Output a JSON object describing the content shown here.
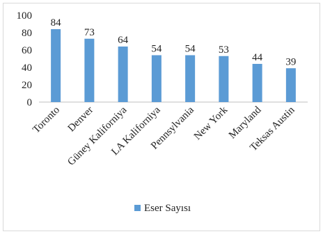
{
  "chart_data": {
    "type": "bar",
    "title": "",
    "xlabel": "",
    "ylabel": "",
    "categories": [
      "Toronto",
      "Denver",
      "Güney Kaliforniya",
      "LA Kaliforniya",
      "Pennsylvania",
      "New York",
      "Maryland",
      "Teksas Austin"
    ],
    "series": [
      {
        "name": "Eser Sayısı",
        "values": [
          84,
          73,
          64,
          54,
          54,
          53,
          44,
          39
        ],
        "color": "#5b9bd5"
      }
    ],
    "ylim": [
      0,
      100
    ],
    "yticks": [
      0,
      20,
      40,
      60,
      80,
      100
    ],
    "grid": false,
    "legend": "bottom",
    "data_labels": true
  }
}
